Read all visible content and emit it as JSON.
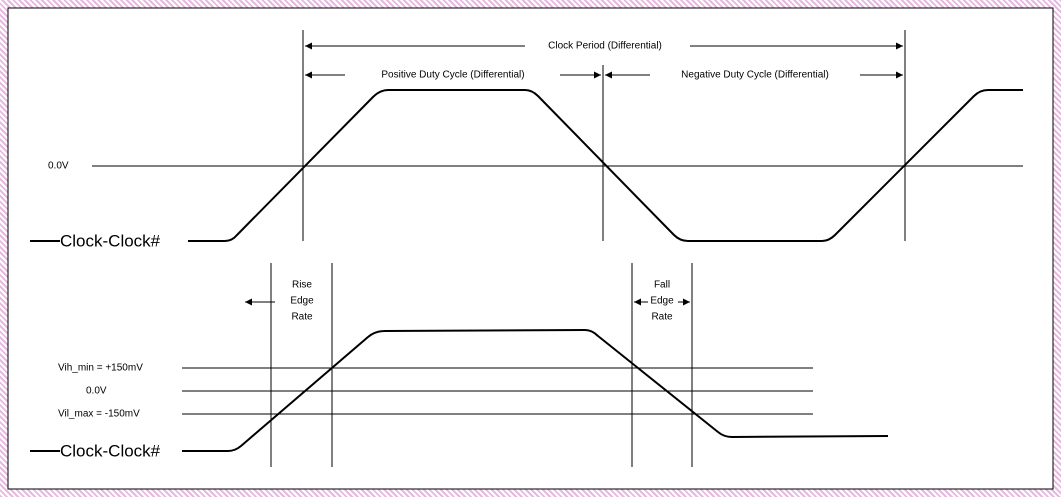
{
  "top": {
    "clock_period": "Clock Period (Differential)",
    "positive_duty": "Positive Duty Cycle (Differential)",
    "negative_duty": "Negative Duty Cycle (Differential)",
    "zero_label": "0.0V",
    "signal_label": "Clock-Clock#"
  },
  "bottom": {
    "rise_label": [
      "Rise",
      "Edge",
      "Rate"
    ],
    "fall_label": [
      "Fall",
      "Edge",
      "Rate"
    ],
    "vih_label": "Vih_min = +150mV",
    "zero_label": "0.0V",
    "vil_label": "Vil_max = -150mV",
    "signal_label": "Clock-Clock#"
  }
}
